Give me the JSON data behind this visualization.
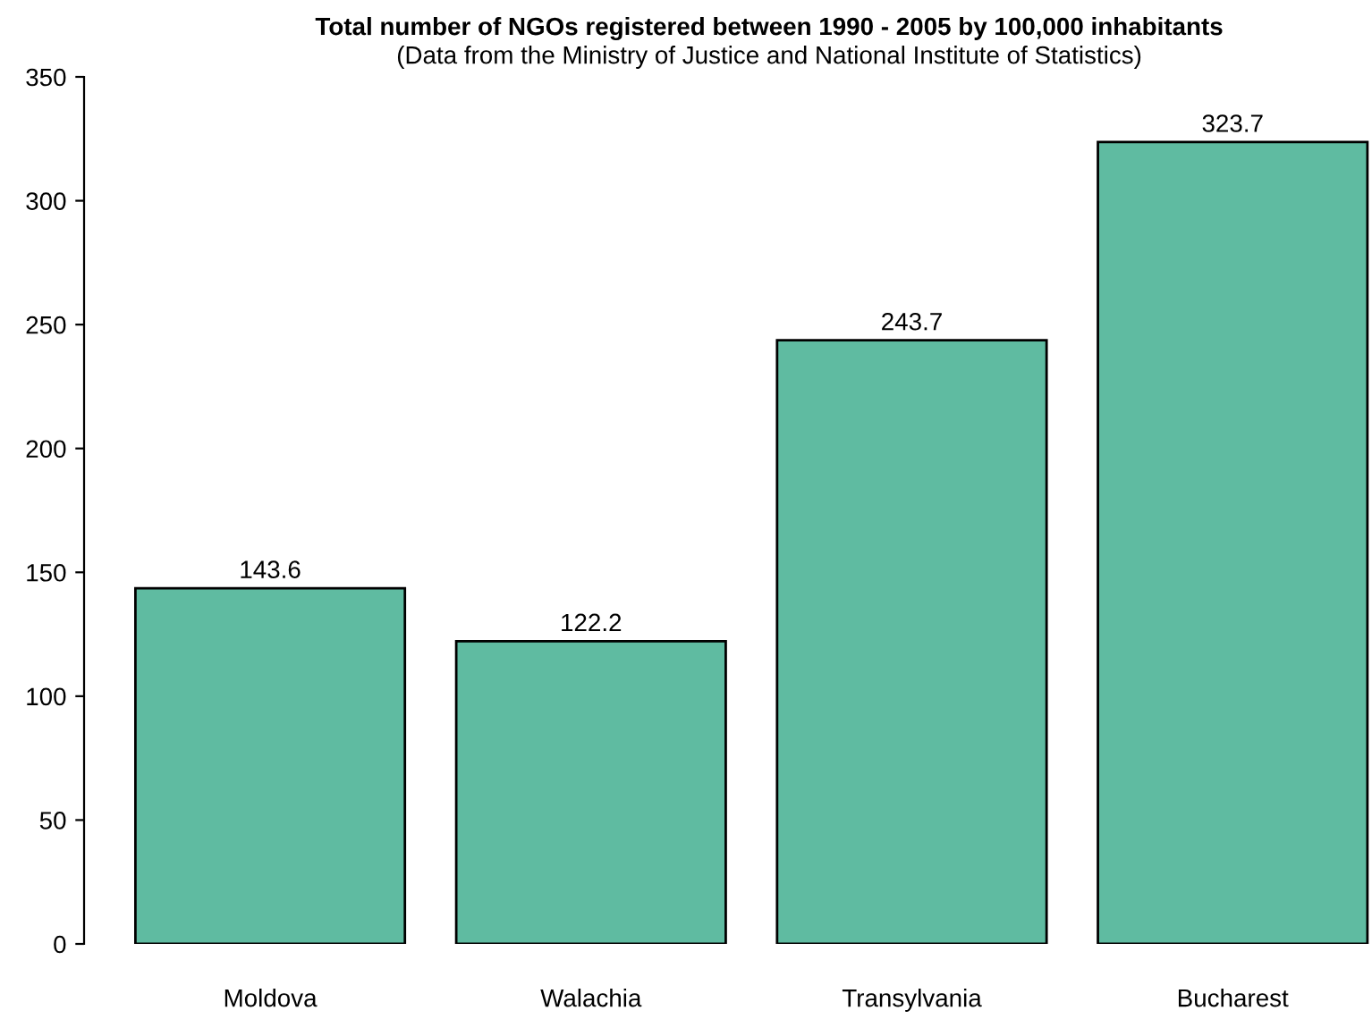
{
  "chart_data": {
    "type": "bar",
    "title": "Total number of NGOs registered between 1990 - 2005 by 100,000 inhabitants",
    "subtitle": "(Data from the Ministry of Justice and National Institute of Statistics)",
    "categories": [
      "Moldova",
      "Walachia",
      "Transylvania",
      "Bucharest"
    ],
    "values": [
      143.6,
      122.2,
      243.7,
      323.7
    ],
    "color": "#5fbba1",
    "ylim": [
      0,
      350
    ],
    "yticks": [
      0,
      50,
      100,
      150,
      200,
      250,
      300,
      350
    ],
    "grid": false,
    "data_labels": true
  }
}
